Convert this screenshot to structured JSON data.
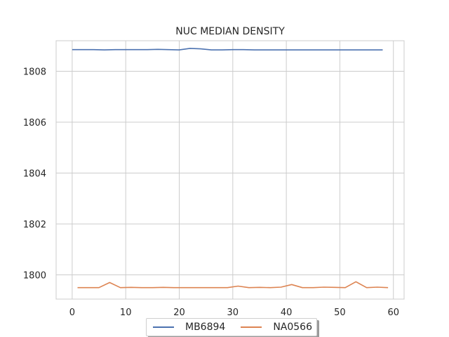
{
  "chart_data": {
    "type": "line",
    "title": "NUC MEDIAN DENSITY",
    "xlabel": "",
    "ylabel": "",
    "xlim": [
      -3,
      62
    ],
    "ylim": [
      1799.05,
      1809.2
    ],
    "xticks": [
      0,
      10,
      20,
      30,
      40,
      50,
      60
    ],
    "yticks": [
      1800,
      1802,
      1804,
      1806,
      1808
    ],
    "grid": true,
    "legend_position": "bottom-center",
    "series": [
      {
        "name": "MB6894",
        "color": "#4c72b0",
        "x": [
          0,
          2,
          4,
          6,
          8,
          10,
          12,
          14,
          16,
          18,
          20,
          22,
          24,
          26,
          28,
          30,
          32,
          34,
          36,
          38,
          40,
          42,
          44,
          46,
          48,
          50,
          52,
          54,
          56,
          58
        ],
        "y": [
          1808.85,
          1808.85,
          1808.85,
          1808.84,
          1808.85,
          1808.85,
          1808.85,
          1808.85,
          1808.86,
          1808.85,
          1808.84,
          1808.9,
          1808.88,
          1808.84,
          1808.84,
          1808.85,
          1808.85,
          1808.84,
          1808.84,
          1808.84,
          1808.84,
          1808.84,
          1808.84,
          1808.84,
          1808.84,
          1808.84,
          1808.84,
          1808.84,
          1808.84,
          1808.84
        ]
      },
      {
        "name": "NA0566",
        "color": "#dd8452",
        "x": [
          1,
          3,
          5,
          7,
          9,
          11,
          13,
          15,
          17,
          19,
          21,
          23,
          25,
          27,
          29,
          31,
          33,
          35,
          37,
          39,
          41,
          43,
          45,
          47,
          49,
          51,
          53,
          55,
          57,
          59
        ],
        "y": [
          1799.5,
          1799.5,
          1799.5,
          1799.7,
          1799.5,
          1799.51,
          1799.5,
          1799.5,
          1799.51,
          1799.5,
          1799.5,
          1799.5,
          1799.5,
          1799.5,
          1799.5,
          1799.56,
          1799.5,
          1799.51,
          1799.5,
          1799.52,
          1799.62,
          1799.5,
          1799.5,
          1799.52,
          1799.51,
          1799.5,
          1799.73,
          1799.5,
          1799.52,
          1799.5
        ]
      }
    ]
  }
}
